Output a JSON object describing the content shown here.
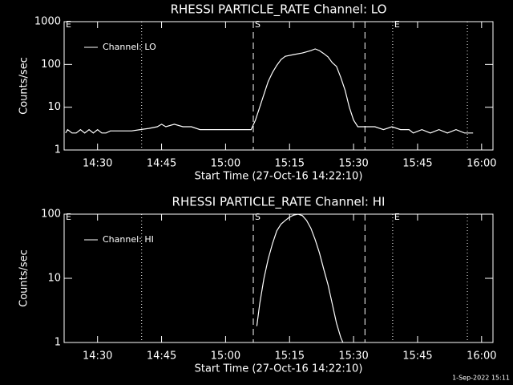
{
  "chart_data": [
    {
      "type": "line",
      "title": "RHESSI PARTICLE_RATE Channel: LO",
      "xlabel": "Start Time (27-Oct-16 14:22:10)",
      "ylabel": "Counts/sec",
      "log_y": true,
      "color": "#ffffff",
      "xlim": [
        "14:22:10",
        "16:02:40"
      ],
      "xticks": [
        "14:30",
        "14:45",
        "15:00",
        "15:15",
        "15:30",
        "15:45",
        "16:00"
      ],
      "ylim": [
        1,
        1000
      ],
      "yticks": [
        1,
        10,
        100,
        1000
      ],
      "markers": [
        {
          "x": "14:40:20",
          "style": "dotted"
        },
        {
          "x": "15:06:30",
          "style": "dashed"
        },
        {
          "x": "15:32:40",
          "style": "dashed"
        },
        {
          "x": "15:39:10",
          "style": "dotted"
        },
        {
          "x": "15:56:40",
          "style": "dotted"
        }
      ],
      "annotations": [
        {
          "text": "E",
          "x": "14:22:10"
        },
        {
          "text": "S",
          "x": "15:06:30"
        },
        {
          "text": "E",
          "x": "15:39:10"
        }
      ],
      "series": [
        {
          "name": "Channel: LO",
          "color": "#ffffff",
          "x": [
            "14:22:30",
            "14:23",
            "14:24",
            "14:25",
            "14:26",
            "14:27",
            "14:28",
            "14:29",
            "14:30",
            "14:31",
            "14:32",
            "14:33",
            "14:35",
            "14:38",
            "14:40",
            "14:42",
            "14:44",
            "14:45",
            "14:46",
            "14:48",
            "14:50",
            "14:52",
            "14:54",
            "14:56",
            "14:58",
            "15:00",
            "15:02",
            "15:04",
            "15:06",
            "15:07",
            "15:08",
            "15:09",
            "15:10",
            "15:11",
            "15:12",
            "15:13",
            "15:14",
            "15:16",
            "15:18",
            "15:20",
            "15:21",
            "15:22",
            "15:23",
            "15:24",
            "15:25",
            "15:26",
            "15:27",
            "15:28",
            "15:29",
            "15:30",
            "15:31",
            "15:33",
            "15:35",
            "15:37",
            "15:39",
            "15:41",
            "15:43",
            "15:44",
            "15:46",
            "15:48",
            "15:50",
            "15:52",
            "15:54",
            "15:56",
            "15:58"
          ],
          "values": [
            2.5,
            3,
            2.5,
            2.5,
            3,
            2.5,
            3,
            2.5,
            3,
            2.5,
            2.5,
            2.8,
            2.8,
            2.8,
            3,
            3.2,
            3.5,
            4,
            3.5,
            4,
            3.5,
            3.5,
            3,
            3,
            3,
            3,
            3,
            3,
            3,
            5,
            10,
            20,
            40,
            65,
            95,
            130,
            155,
            170,
            185,
            210,
            230,
            210,
            180,
            150,
            110,
            90,
            50,
            25,
            10,
            5,
            3.5,
            3.5,
            3.5,
            3,
            3.5,
            3,
            3,
            2.5,
            3,
            2.5,
            3,
            2.5,
            3,
            2.5,
            2.5
          ]
        }
      ]
    },
    {
      "type": "line",
      "title": "RHESSI PARTICLE_RATE Channel: HI",
      "xlabel": "Start Time (27-Oct-16 14:22:10)",
      "ylabel": "Counts/sec",
      "log_y": true,
      "color": "#ffffff",
      "xlim": [
        "14:22:10",
        "16:02:40"
      ],
      "xticks": [
        "14:30",
        "14:45",
        "15:00",
        "15:15",
        "15:30",
        "15:45",
        "16:00"
      ],
      "ylim": [
        1,
        100
      ],
      "yticks": [
        1,
        10,
        100
      ],
      "markers": [
        {
          "x": "14:40:20",
          "style": "dotted"
        },
        {
          "x": "15:06:30",
          "style": "dashed"
        },
        {
          "x": "15:32:40",
          "style": "dashed"
        },
        {
          "x": "15:39:10",
          "style": "dotted"
        },
        {
          "x": "15:56:40",
          "style": "dotted"
        }
      ],
      "annotations": [
        {
          "text": "E",
          "x": "14:22:10"
        },
        {
          "text": "S",
          "x": "15:06:30"
        },
        {
          "text": "E",
          "x": "15:39:10"
        }
      ],
      "series": [
        {
          "name": "Channel: HI",
          "color": "#ffffff",
          "x": [
            "15:07:20",
            "15:08",
            "15:09",
            "15:10",
            "15:11",
            "15:12",
            "15:13",
            "15:14",
            "15:15",
            "15:16",
            "15:17",
            "15:18",
            "15:19",
            "15:20",
            "15:21",
            "15:22",
            "15:23",
            "15:24",
            "15:25",
            "15:26",
            "15:27",
            "15:27:30"
          ],
          "values": [
            1.8,
            4,
            10,
            20,
            35,
            55,
            70,
            80,
            90,
            97,
            100,
            95,
            80,
            60,
            40,
            25,
            14,
            8,
            4,
            2,
            1.2,
            1
          ]
        }
      ]
    }
  ],
  "footer": "1-Sep-2022 15:11"
}
